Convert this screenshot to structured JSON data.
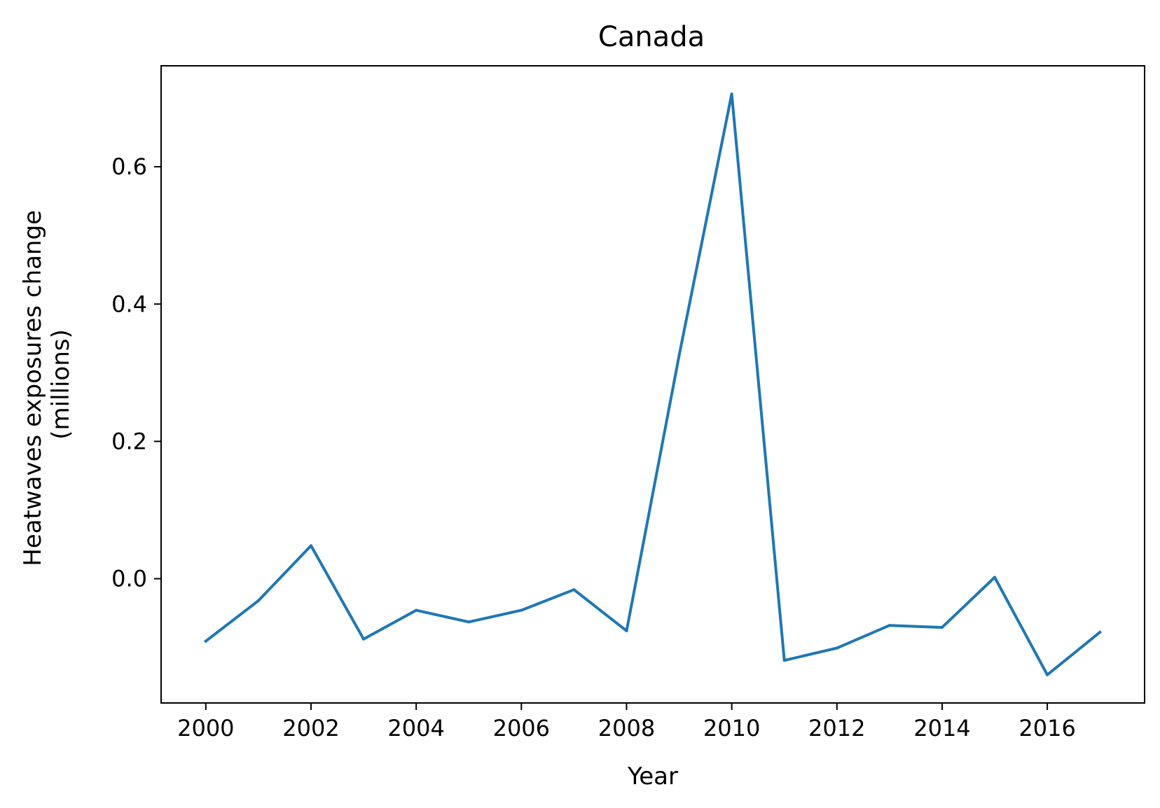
{
  "chart_data": {
    "type": "line",
    "title": "Canada",
    "xlabel": "Year",
    "ylabel": [
      "Heatwaves exposures change",
      "(millions)"
    ],
    "xlim": [
      1999.15,
      2017.85
    ],
    "ylim": [
      -0.181,
      0.747
    ],
    "xticks": [
      2000,
      2002,
      2004,
      2006,
      2008,
      2010,
      2012,
      2014,
      2016
    ],
    "xtick_labels": [
      "2000",
      "2002",
      "2004",
      "2006",
      "2008",
      "2010",
      "2012",
      "2014",
      "2016"
    ],
    "yticks": [
      0.0,
      0.2,
      0.4,
      0.6
    ],
    "ytick_labels": [
      "0.0",
      "0.2",
      "0.4",
      "0.6"
    ],
    "grid": false,
    "series": [
      {
        "color": "#1f77b4",
        "x": [
          2000,
          2001,
          2002,
          2003,
          2004,
          2005,
          2006,
          2007,
          2008,
          2009,
          2010,
          2011,
          2012,
          2013,
          2014,
          2015,
          2016,
          2017
        ],
        "y": [
          -0.091,
          -0.032,
          0.048,
          -0.088,
          -0.046,
          -0.063,
          -0.046,
          -0.016,
          -0.076,
          0.325,
          0.706,
          -0.119,
          -0.101,
          -0.068,
          -0.071,
          0.002,
          -0.14,
          -0.078
        ]
      }
    ]
  }
}
